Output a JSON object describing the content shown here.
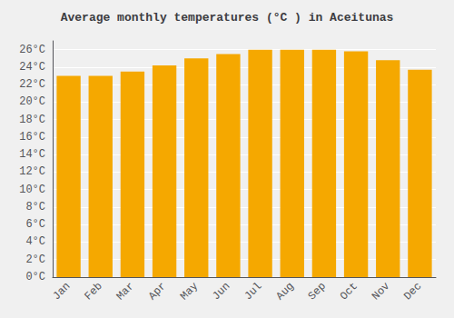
{
  "chart_data": {
    "type": "bar",
    "title": "Average monthly temperatures (°C ) in Aceitunas",
    "categories": [
      "Jan",
      "Feb",
      "Mar",
      "Apr",
      "May",
      "Jun",
      "Jul",
      "Aug",
      "Sep",
      "Oct",
      "Nov",
      "Dec"
    ],
    "values": [
      23.0,
      23.0,
      23.5,
      24.2,
      25.0,
      25.5,
      26.0,
      26.0,
      26.0,
      25.8,
      24.8,
      23.7
    ],
    "color": "#F5A800",
    "ylim": [
      0,
      27
    ],
    "yticks": [
      {
        "value": 0,
        "label": "0°C"
      },
      {
        "value": 2,
        "label": "2°C"
      },
      {
        "value": 4,
        "label": "4°C"
      },
      {
        "value": 6,
        "label": "6°C"
      },
      {
        "value": 8,
        "label": "8°C"
      },
      {
        "value": 10,
        "label": "10°C"
      },
      {
        "value": 12,
        "label": "12°C"
      },
      {
        "value": 14,
        "label": "14°C"
      },
      {
        "value": 16,
        "label": "16°C"
      },
      {
        "value": 18,
        "label": "18°C"
      },
      {
        "value": 20,
        "label": "20°C"
      },
      {
        "value": 22,
        "label": "22°C"
      },
      {
        "value": 24,
        "label": "24°C"
      },
      {
        "value": 26,
        "label": "26°C"
      }
    ],
    "grid": true
  }
}
